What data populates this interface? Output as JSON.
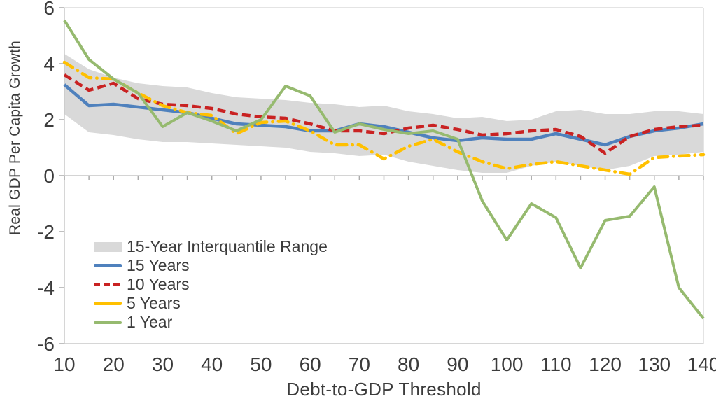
{
  "chart_data": {
    "type": "line",
    "title": "",
    "xlabel": "Debt-to-GDP Threshold",
    "ylabel": "Real GDP Per Capita Growth",
    "xlim": [
      10,
      140
    ],
    "ylim": [
      -6,
      6
    ],
    "xticks": [
      10,
      20,
      30,
      40,
      50,
      60,
      70,
      80,
      90,
      100,
      110,
      120,
      130,
      140
    ],
    "yticks": [
      -6,
      -4,
      -2,
      0,
      2,
      4,
      6
    ],
    "grid": false,
    "legend_position": "inside-left",
    "x": [
      10,
      15,
      20,
      25,
      30,
      35,
      40,
      45,
      50,
      55,
      60,
      65,
      70,
      75,
      80,
      85,
      90,
      95,
      100,
      105,
      110,
      115,
      120,
      125,
      130,
      135,
      140
    ],
    "band": {
      "name": "15-Year Interquantile Range",
      "color": "#D9D9D9",
      "upper": [
        4.35,
        3.8,
        3.5,
        3.3,
        3.2,
        3.15,
        2.95,
        2.8,
        2.75,
        2.7,
        2.6,
        2.55,
        2.45,
        2.5,
        2.3,
        2.2,
        2.05,
        2.1,
        1.95,
        2.0,
        2.3,
        2.35,
        2.2,
        2.2,
        2.3,
        2.3,
        2.2
      ],
      "lower": [
        2.2,
        1.55,
        1.45,
        1.3,
        1.2,
        1.2,
        1.15,
        1.1,
        1.05,
        1.0,
        0.85,
        0.8,
        0.7,
        0.75,
        0.5,
        0.35,
        0.2,
        0.1,
        0.1,
        0.35,
        0.5,
        0.35,
        0.2,
        0.35,
        0.7,
        0.75,
        0.85
      ]
    },
    "series": [
      {
        "name": "15 Years",
        "color": "#4F81BD",
        "dash": "solid",
        "width": 4.5,
        "values": [
          3.25,
          2.5,
          2.55,
          2.45,
          2.35,
          2.25,
          2.05,
          1.85,
          1.8,
          1.75,
          1.6,
          1.6,
          1.85,
          1.75,
          1.55,
          1.35,
          1.25,
          1.35,
          1.3,
          1.3,
          1.5,
          1.3,
          1.1,
          1.4,
          1.6,
          1.7,
          1.85
        ]
      },
      {
        "name": "10 Years",
        "color": "#C92222",
        "dash": "dash",
        "width": 4.5,
        "values": [
          3.6,
          3.05,
          3.3,
          2.75,
          2.55,
          2.5,
          2.4,
          2.2,
          2.1,
          2.05,
          1.85,
          1.6,
          1.6,
          1.5,
          1.7,
          1.8,
          1.65,
          1.45,
          1.5,
          1.6,
          1.65,
          1.4,
          0.8,
          1.4,
          1.65,
          1.75,
          1.8
        ]
      },
      {
        "name": "5 Years",
        "color": "#FFC000",
        "dash": "dashdot",
        "width": 4.5,
        "values": [
          4.05,
          3.5,
          3.45,
          2.95,
          2.5,
          2.25,
          2.15,
          1.5,
          1.9,
          1.95,
          1.6,
          1.1,
          1.1,
          0.6,
          1.05,
          1.3,
          0.85,
          0.5,
          0.25,
          0.4,
          0.5,
          0.35,
          0.2,
          0.05,
          0.65,
          0.7,
          0.75
        ]
      },
      {
        "name": "1 Year",
        "color": "#96BA6F",
        "dash": "solid",
        "width": 4,
        "values": [
          5.55,
          4.15,
          3.45,
          2.95,
          1.75,
          2.25,
          1.95,
          1.6,
          2.0,
          3.2,
          2.85,
          1.55,
          1.85,
          1.65,
          1.5,
          1.6,
          1.3,
          -0.9,
          -2.3,
          -1.0,
          -1.5,
          -3.3,
          -1.6,
          -1.45,
          -0.4,
          -4.0,
          -5.1
        ]
      }
    ],
    "axis_colors": {
      "spine": "#C9C9C9",
      "tick": "#ABABAB",
      "zero_line": "#C6C6C6",
      "label_text": "#3c3c3c"
    }
  }
}
